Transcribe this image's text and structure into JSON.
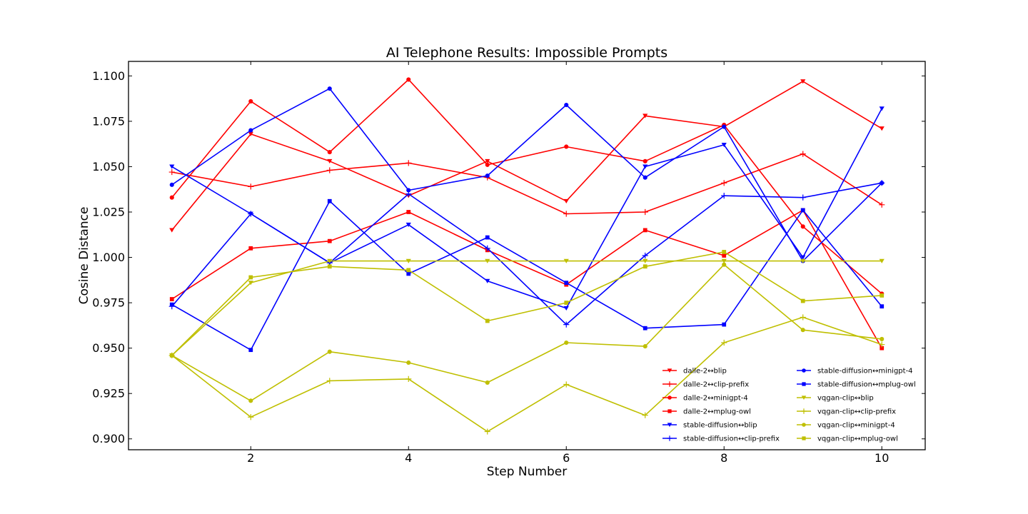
{
  "chart_data": {
    "type": "line",
    "title": "AI Telephone Results: Impossible Prompts",
    "xlabel": "Step Number",
    "ylabel": "Cosine Distance",
    "xlim": [
      0.45,
      10.55
    ],
    "ylim": [
      0.894,
      1.108
    ],
    "xticks": [
      2,
      4,
      6,
      8,
      10
    ],
    "xtick_labels": [
      "2",
      "4",
      "6",
      "8",
      "10"
    ],
    "yticks": [
      0.9,
      0.925,
      0.95,
      0.975,
      1.0,
      1.025,
      1.05,
      1.075,
      1.1
    ],
    "ytick_labels": [
      "0.900",
      "0.925",
      "0.950",
      "0.975",
      "1.000",
      "1.025",
      "1.050",
      "1.075",
      "1.100"
    ],
    "grid": false,
    "legend_position": "lower-right",
    "x": [
      1,
      2,
      3,
      4,
      5,
      6,
      7,
      8,
      9,
      10
    ],
    "series": [
      {
        "name": "dalle-2↔blip",
        "color": "#ff0000",
        "marker": "triangle-down",
        "values": [
          1.015,
          1.068,
          1.053,
          1.034,
          1.053,
          1.031,
          1.078,
          1.072,
          1.097,
          1.071
        ]
      },
      {
        "name": "dalle-2↔clip-prefix",
        "color": "#ff0000",
        "marker": "plus",
        "values": [
          1.047,
          1.039,
          1.048,
          1.052,
          1.044,
          1.024,
          1.025,
          1.041,
          1.057,
          1.029
        ]
      },
      {
        "name": "dalle-2↔minigpt-4",
        "color": "#ff0000",
        "marker": "circle",
        "values": [
          1.033,
          1.086,
          1.058,
          1.098,
          1.051,
          1.061,
          1.053,
          1.073,
          1.017,
          0.98
        ]
      },
      {
        "name": "dalle-2↔mplug-owl",
        "color": "#ff0000",
        "marker": "square",
        "values": [
          0.977,
          1.005,
          1.009,
          1.025,
          1.004,
          0.985,
          1.015,
          1.001,
          1.026,
          0.95
        ]
      },
      {
        "name": "stable-diffusion↔blip",
        "color": "#0000ff",
        "marker": "triangle-down",
        "values": [
          1.05,
          1.024,
          0.997,
          1.018,
          0.987,
          0.972,
          1.05,
          1.062,
          1.0,
          1.082
        ]
      },
      {
        "name": "stable-diffusion↔clip-prefix",
        "color": "#0000ff",
        "marker": "plus",
        "values": [
          0.973,
          1.024,
          0.997,
          1.035,
          1.005,
          0.963,
          1.001,
          1.034,
          1.033,
          1.041
        ]
      },
      {
        "name": "stable-diffusion↔minigpt-4",
        "color": "#0000ff",
        "marker": "circle",
        "values": [
          1.04,
          1.07,
          1.093,
          1.037,
          1.045,
          1.084,
          1.044,
          1.072,
          0.998,
          1.041
        ]
      },
      {
        "name": "stable-diffusion↔mplug-owl",
        "color": "#0000ff",
        "marker": "square",
        "values": [
          0.974,
          0.949,
          1.031,
          0.991,
          1.011,
          0.986,
          0.961,
          0.963,
          1.026,
          0.973
        ]
      },
      {
        "name": "vqgan-clip↔blip",
        "color": "#bfbf00",
        "marker": "triangle-down",
        "values": [
          0.946,
          0.986,
          0.998,
          0.998,
          0.998,
          0.998,
          0.998,
          0.998,
          0.998,
          0.998
        ]
      },
      {
        "name": "vqgan-clip↔clip-prefix",
        "color": "#bfbf00",
        "marker": "plus",
        "values": [
          0.946,
          0.912,
          0.932,
          0.933,
          0.904,
          0.93,
          0.913,
          0.953,
          0.967,
          0.952
        ]
      },
      {
        "name": "vqgan-clip↔minigpt-4",
        "color": "#bfbf00",
        "marker": "circle",
        "values": [
          0.946,
          0.921,
          0.948,
          0.942,
          0.931,
          0.953,
          0.951,
          0.996,
          0.96,
          0.955
        ]
      },
      {
        "name": "vqgan-clip↔mplug-owl",
        "color": "#bfbf00",
        "marker": "square",
        "values": [
          0.946,
          0.989,
          0.995,
          0.993,
          0.965,
          0.975,
          0.995,
          1.003,
          0.976,
          0.979
        ]
      }
    ]
  }
}
